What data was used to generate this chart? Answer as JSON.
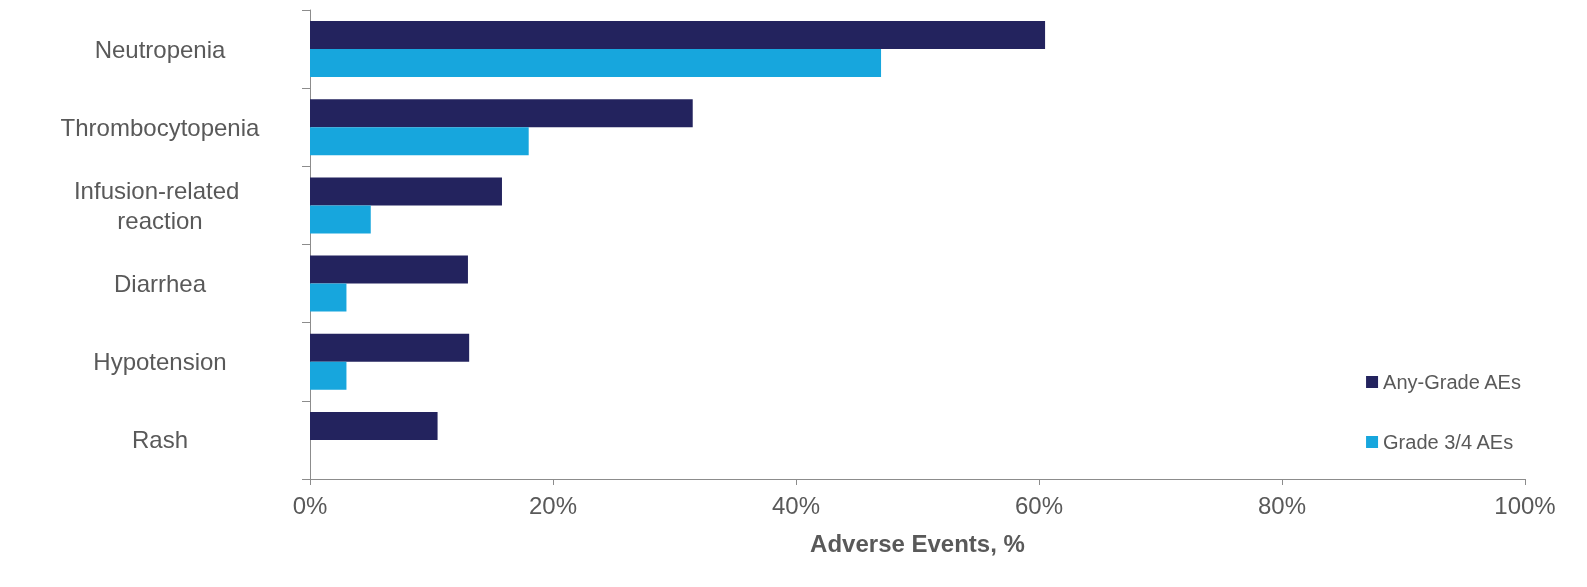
{
  "chart_data": {
    "type": "bar",
    "orientation": "horizontal",
    "xlabel": "Adverse Events, %",
    "categories": [
      "Neutropenia",
      "Thrombocytopenia",
      "Infusion-related reaction",
      "Diarrhea",
      "Hypotension",
      "Rash"
    ],
    "series": [
      {
        "name": "Any-Grade AEs",
        "color": "#23235e",
        "values": [
          60.5,
          31.5,
          15.8,
          13,
          13.1,
          10.5
        ]
      },
      {
        "name": "Grade 3/4 AEs",
        "color": "#17a6dd",
        "values": [
          47,
          18,
          5,
          3,
          3,
          null
        ]
      }
    ],
    "xlim": [
      0,
      100
    ],
    "xticks": [
      {
        "value": 0,
        "label": "0%"
      },
      {
        "value": 20,
        "label": "20%"
      },
      {
        "value": 40,
        "label": "40%"
      },
      {
        "value": 60,
        "label": "60%"
      },
      {
        "value": 80,
        "label": "80%"
      },
      {
        "value": 100,
        "label": "100%"
      }
    ],
    "grid": false,
    "legend": "bottom right"
  }
}
